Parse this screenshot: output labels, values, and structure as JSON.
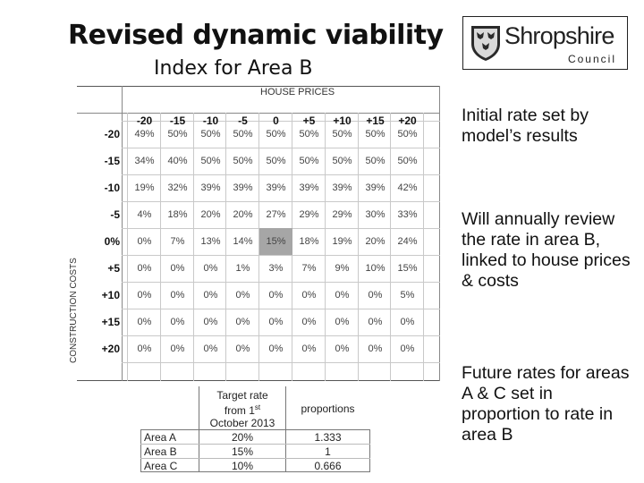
{
  "slide": {
    "title": "Revised dynamic viability",
    "subtitle": "Index for Area B"
  },
  "logo": {
    "brand": "Shropshire",
    "council": "Council",
    "icon": "shropshire-crest-icon"
  },
  "matrix": {
    "column_group_label": "HOUSE PRICES",
    "row_group_label": "CONSTRUCTION COSTS",
    "column_headers": [
      "-20",
      "-15",
      "-10",
      "-5",
      "0",
      "+5",
      "+10",
      "+15",
      "+20"
    ],
    "row_headers": [
      "-20",
      "-15",
      "-10",
      "-5",
      "0%",
      "+5",
      "+10",
      "+15",
      "+20"
    ],
    "rows": [
      [
        "49%",
        "50%",
        "50%",
        "50%",
        "50%",
        "50%",
        "50%",
        "50%",
        "50%"
      ],
      [
        "34%",
        "40%",
        "50%",
        "50%",
        "50%",
        "50%",
        "50%",
        "50%",
        "50%"
      ],
      [
        "19%",
        "32%",
        "39%",
        "39%",
        "39%",
        "39%",
        "39%",
        "39%",
        "42%"
      ],
      [
        "4%",
        "18%",
        "20%",
        "20%",
        "27%",
        "29%",
        "29%",
        "30%",
        "33%"
      ],
      [
        "0%",
        "7%",
        "13%",
        "14%",
        "15%",
        "18%",
        "19%",
        "20%",
        "24%"
      ],
      [
        "0%",
        "0%",
        "0%",
        "1%",
        "3%",
        "7%",
        "9%",
        "10%",
        "15%"
      ],
      [
        "0%",
        "0%",
        "0%",
        "0%",
        "0%",
        "0%",
        "0%",
        "0%",
        "5%"
      ],
      [
        "0%",
        "0%",
        "0%",
        "0%",
        "0%",
        "0%",
        "0%",
        "0%",
        "0%"
      ],
      [
        "0%",
        "0%",
        "0%",
        "0%",
        "0%",
        "0%",
        "0%",
        "0%",
        "0%"
      ]
    ],
    "highlight_color": "#a6a6a6"
  },
  "bullets": [
    "Initial rate set by model’s results",
    "Will annually review the rate in area B, linked to house prices & costs",
    "Future rates for areas A & C set in proportion to rate in area B"
  ],
  "target_table": {
    "header_rate_line1": "Target rate",
    "header_rate_line2a": "from 1",
    "header_rate_sup": "st",
    "header_rate_line3": "October 2013",
    "header_proportions": "proportions",
    "rows": [
      {
        "area": "Area A",
        "rate": "20%",
        "proportion": "1.333"
      },
      {
        "area": "Area B",
        "rate": "15%",
        "proportion": "1"
      },
      {
        "area": "Area C",
        "rate": "10%",
        "proportion": "0.666"
      }
    ]
  }
}
